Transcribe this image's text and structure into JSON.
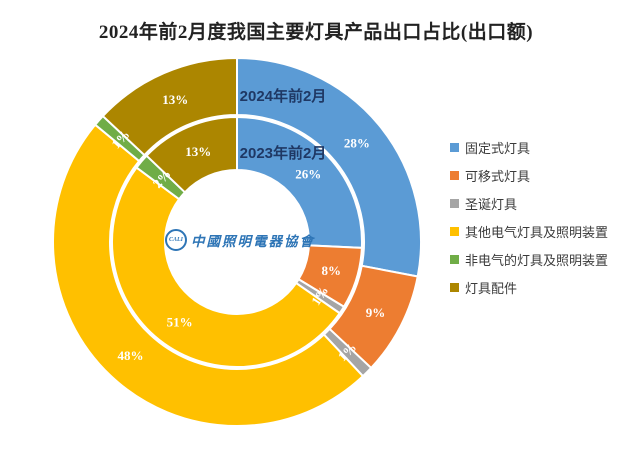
{
  "chart_data": {
    "type": "donut",
    "title": "2024年前2月度我国主要灯具产品出口占比(出口额)",
    "legend_position": "right",
    "grid": false,
    "categories": [
      "固定式灯具",
      "可移式灯具",
      "圣诞灯具",
      "其他电气灯具及照明装置",
      "非电气的灯具及照明装置",
      "灯具配件"
    ],
    "colors": [
      "#5B9BD5",
      "#ED7D31",
      "#A5A5A5",
      "#FFC000",
      "#70AD47",
      "#AC8600"
    ],
    "rings": [
      {
        "name": "2024年前2月",
        "position": "outer",
        "values": [
          28,
          9,
          1,
          48,
          1,
          13
        ],
        "labels": [
          "28%",
          "9%",
          "1%",
          "48%",
          "1%",
          "13%"
        ]
      },
      {
        "name": "2023年前2月",
        "position": "inner",
        "values": [
          26,
          8,
          1,
          51,
          2,
          13
        ],
        "labels": [
          "26%",
          "8%",
          "1%",
          "51%",
          "2%",
          "13%"
        ]
      }
    ],
    "label_color": "#ffffff",
    "ring_name_color": "#1F3864",
    "watermark": {
      "logo_text": "CALI",
      "org_name": "中國照明電器協會",
      "color": "#2E75B6"
    }
  }
}
